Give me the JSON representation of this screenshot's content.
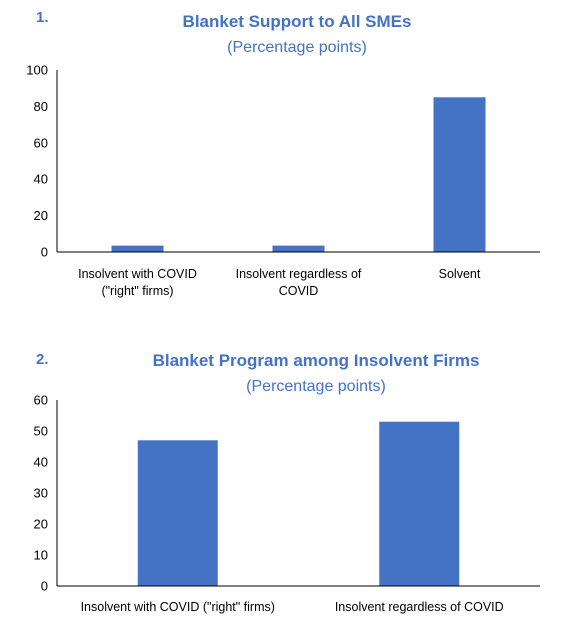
{
  "colors": {
    "bar": "#4472C4",
    "title": "#4472C4",
    "axis": "#000000"
  },
  "chart_data": [
    {
      "type": "bar",
      "number": "1.",
      "title": "Blanket Support to All SMEs",
      "subtitle": "(Percentage points)",
      "ylim": [
        0,
        100
      ],
      "yticks": [
        0,
        20,
        40,
        60,
        80,
        100
      ],
      "grid": false,
      "legend": "none",
      "categories": [
        [
          "Insolvent with COVID",
          "(\"right\" firms)"
        ],
        [
          "Insolvent regardless of",
          "COVID"
        ],
        [
          "Solvent"
        ]
      ],
      "values": [
        3.5,
        3.5,
        85
      ]
    },
    {
      "type": "bar",
      "number": "2.",
      "title": "Blanket Program among Insolvent Firms",
      "subtitle": "(Percentage points)",
      "ylim": [
        0,
        60
      ],
      "yticks": [
        0,
        10,
        20,
        30,
        40,
        50,
        60
      ],
      "grid": false,
      "legend": "none",
      "categories": [
        [
          "Insolvent with COVID (\"right\" firms)"
        ],
        [
          "Insolvent regardless of COVID"
        ]
      ],
      "values": [
        47,
        53
      ]
    }
  ]
}
